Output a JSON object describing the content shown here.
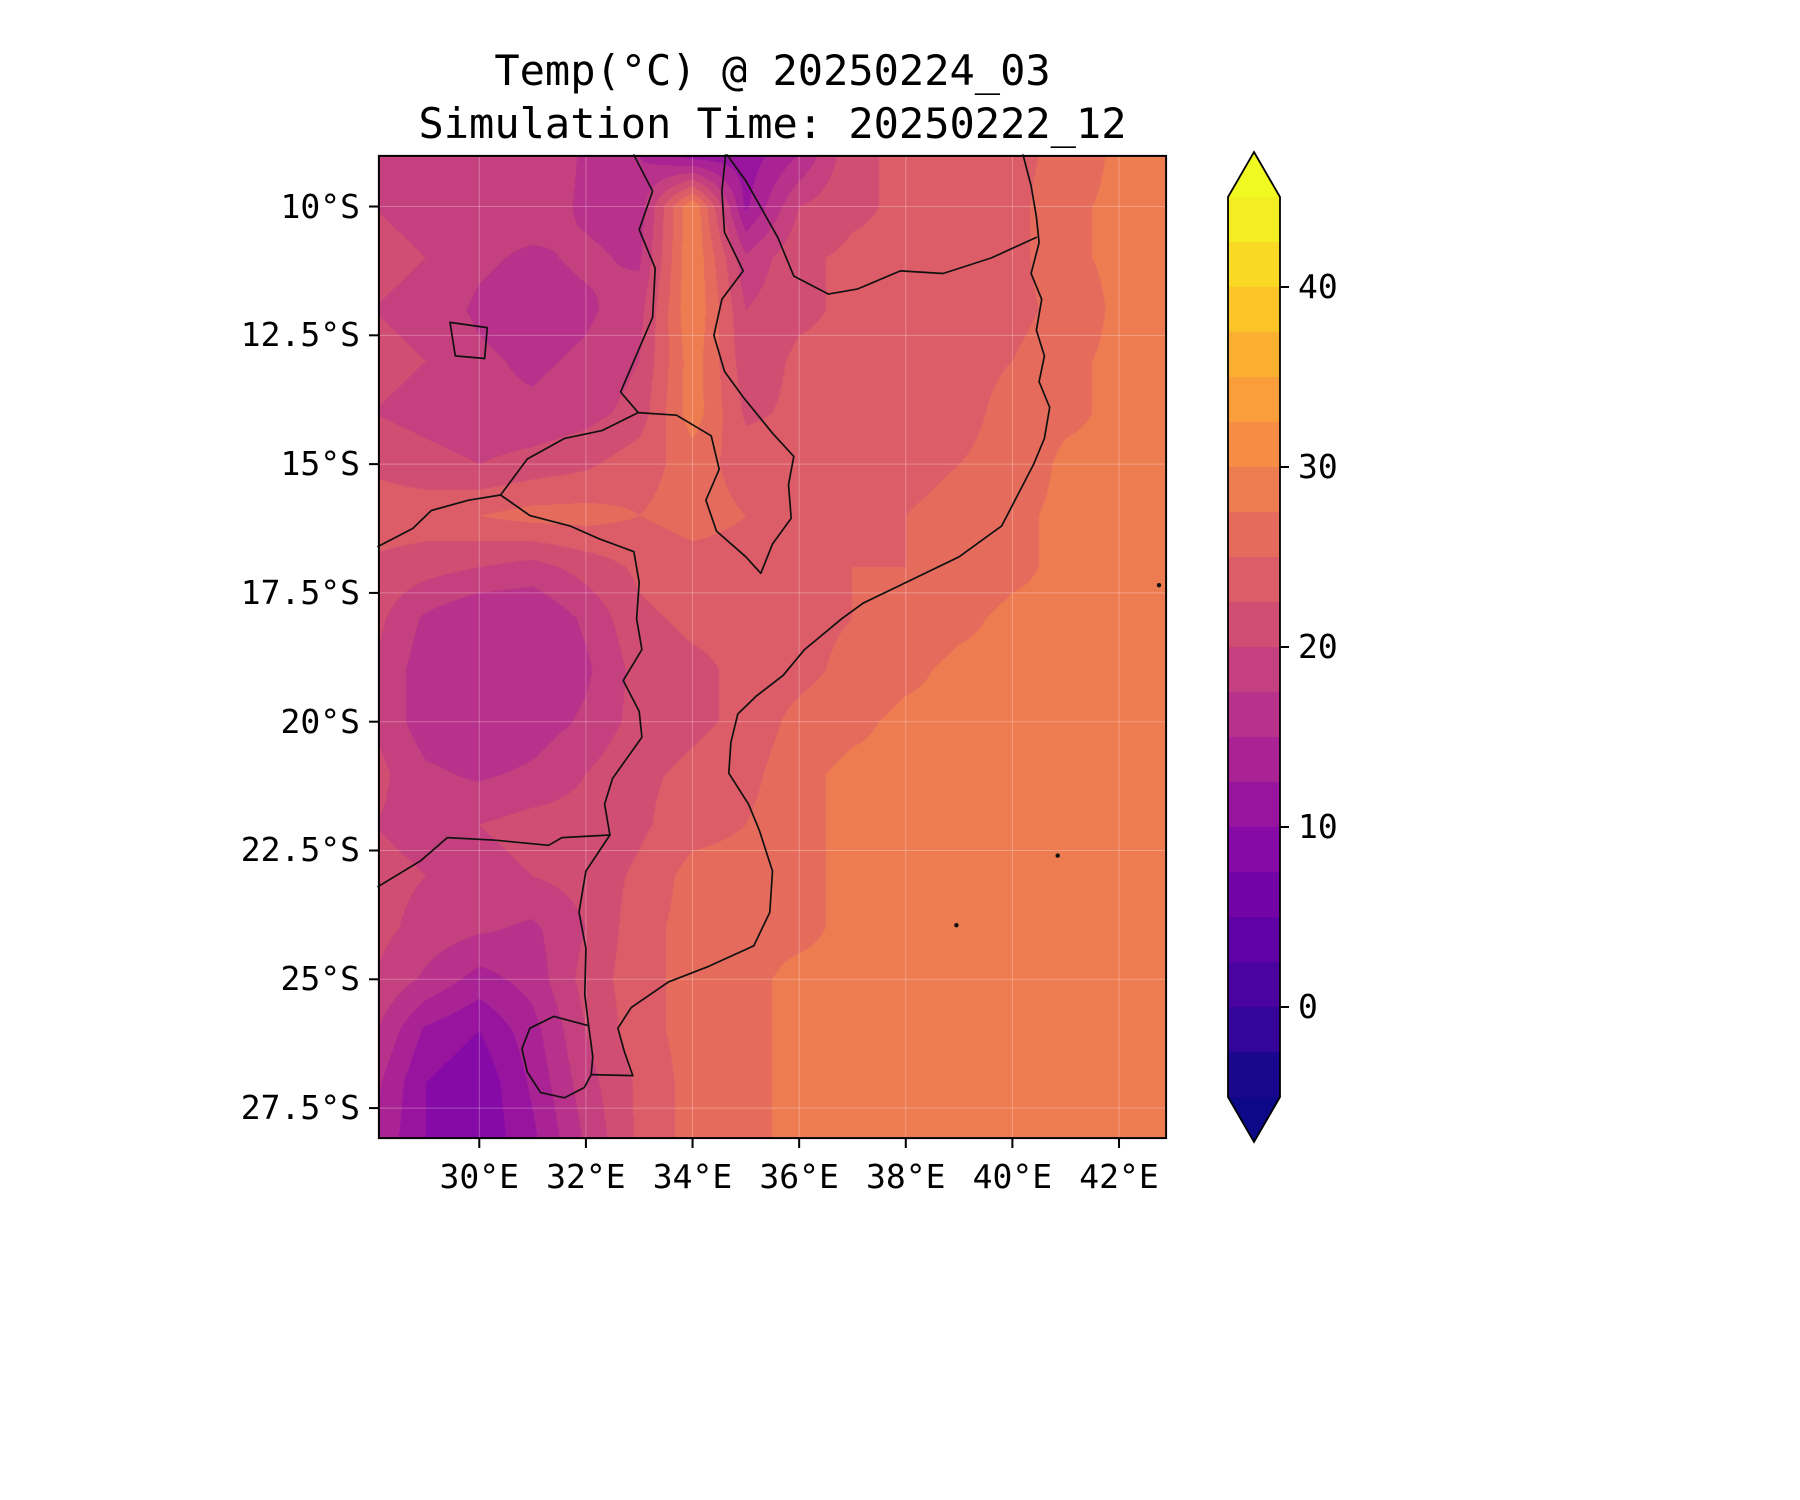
{
  "title": {
    "line1": "Temp(°C) @ 20250224_03",
    "line2": "Simulation Time: 20250222_12"
  },
  "axes": {
    "x_ticks": [
      {
        "value": 30,
        "label": "30°E"
      },
      {
        "value": 32,
        "label": "32°E"
      },
      {
        "value": 34,
        "label": "34°E"
      },
      {
        "value": 36,
        "label": "36°E"
      },
      {
        "value": 38,
        "label": "38°E"
      },
      {
        "value": 40,
        "label": "40°E"
      },
      {
        "value": 42,
        "label": "42°E"
      }
    ],
    "y_ticks": [
      {
        "value": 10,
        "label": "10°S"
      },
      {
        "value": 12.5,
        "label": "12.5°S"
      },
      {
        "value": 15,
        "label": "15°S"
      },
      {
        "value": 17.5,
        "label": "17.5°S"
      },
      {
        "value": 20,
        "label": "20°S"
      },
      {
        "value": 22.5,
        "label": "22.5°S"
      },
      {
        "value": 25,
        "label": "25°S"
      },
      {
        "value": 27.5,
        "label": "27.5°S"
      }
    ]
  },
  "colorbar": {
    "colormap": "plasma",
    "vmin": -5,
    "vmax": 45,
    "band_step": 2.5,
    "over_color": "#f0f921",
    "under_color": "#0d0887",
    "anchors": [
      "#0d0887",
      "#41049d",
      "#6a00a8",
      "#8f0da4",
      "#b12a90",
      "#cc4778",
      "#e16462",
      "#f2844b",
      "#fca636",
      "#fcce25",
      "#f0f921"
    ],
    "ticks": [
      {
        "value": 40,
        "label": "40"
      },
      {
        "value": 30,
        "label": "30"
      },
      {
        "value": 20,
        "label": "20"
      },
      {
        "value": 10,
        "label": "10"
      },
      {
        "value": 0,
        "label": "0"
      }
    ]
  },
  "chart_data": {
    "type": "heatmap",
    "title": "Temp(°C) @ 20250224_03",
    "subtitle": "Simulation Time: 20250222_12",
    "units": "°C",
    "lon_range": [
      28.1,
      42.9
    ],
    "lat_range": [
      9.0,
      28.1
    ],
    "grid_lon": [
      28,
      29,
      30,
      31,
      32,
      33,
      34,
      35,
      36,
      37,
      38,
      39,
      40,
      41,
      42,
      43
    ],
    "grid_lat": [
      9,
      10,
      11,
      12,
      13,
      14,
      15,
      16,
      17,
      18,
      19,
      20,
      21,
      22,
      23,
      24,
      25,
      26,
      27,
      28
    ],
    "temperature_c": [
      [
        20,
        19,
        18,
        20,
        17,
        15,
        11,
        11,
        15,
        22,
        23,
        23,
        24,
        26,
        28,
        28
      ],
      [
        20,
        19,
        18,
        19,
        17,
        16,
        30,
        12,
        20,
        22,
        23,
        23,
        24,
        27,
        28,
        28
      ],
      [
        21,
        20,
        18,
        17,
        18,
        17,
        30,
        18,
        22,
        23,
        23,
        23,
        24,
        27,
        28,
        28
      ],
      [
        20,
        19,
        17,
        16,
        17,
        19,
        30,
        20,
        22,
        23,
        23,
        24,
        24,
        26,
        28,
        28
      ],
      [
        21,
        20,
        18,
        17,
        18,
        20,
        29,
        21,
        23,
        23,
        23,
        24,
        25,
        27,
        28,
        28
      ],
      [
        20,
        19,
        18,
        18,
        19,
        21,
        29,
        22,
        23,
        23,
        24,
        24,
        26,
        27,
        28,
        28
      ],
      [
        22,
        21,
        20,
        21,
        22,
        24,
        26,
        24,
        23,
        24,
        24,
        25,
        26,
        28,
        28,
        28
      ],
      [
        24,
        24,
        25,
        26,
        26,
        25,
        26,
        25,
        24,
        24,
        25,
        26,
        27,
        28,
        28,
        28
      ],
      [
        22,
        21,
        20,
        19,
        21,
        23,
        24,
        24,
        24,
        25,
        25,
        26,
        27,
        28,
        28,
        28
      ],
      [
        21,
        17,
        15,
        15,
        18,
        22,
        23,
        23,
        24,
        25,
        26,
        27,
        28,
        28,
        28,
        28
      ],
      [
        20,
        16,
        15,
        15,
        17,
        21,
        22,
        23,
        24,
        26,
        27,
        28,
        28,
        28,
        28,
        28
      ],
      [
        20,
        16,
        15,
        16,
        18,
        21,
        22,
        23,
        26,
        27,
        28,
        28,
        28,
        28,
        28,
        28
      ],
      [
        21,
        18,
        17,
        18,
        20,
        22,
        23,
        24,
        27,
        28,
        28,
        28,
        28,
        28,
        28,
        28
      ],
      [
        20,
        19,
        20,
        21,
        21,
        22,
        24,
        25,
        27,
        28,
        28,
        28,
        28,
        28,
        28,
        28
      ],
      [
        21,
        20,
        19,
        20,
        21,
        23,
        26,
        26,
        27,
        28,
        28,
        28,
        28,
        28,
        28,
        28
      ],
      [
        21,
        19,
        18,
        17,
        20,
        24,
        26,
        27,
        27,
        28,
        28,
        28,
        28,
        28,
        28,
        28
      ],
      [
        20,
        17,
        14,
        16,
        21,
        24,
        26,
        27,
        28,
        28,
        28,
        28,
        28,
        28,
        28,
        28
      ],
      [
        18,
        12,
        10,
        14,
        20,
        24,
        26,
        27,
        28,
        28,
        28,
        28,
        28,
        28,
        28,
        28
      ],
      [
        16,
        10,
        8,
        13,
        19,
        23,
        26,
        27,
        28,
        28,
        28,
        28,
        28,
        28,
        28,
        28
      ],
      [
        15,
        10,
        8,
        12,
        18,
        23,
        26,
        27,
        28,
        28,
        28,
        28,
        28,
        28,
        28,
        28
      ]
    ],
    "borders": {
      "coastline": [
        [
          40.2,
          9.0
        ],
        [
          40.35,
          9.6
        ],
        [
          40.45,
          10.2
        ],
        [
          40.5,
          10.7
        ],
        [
          40.35,
          11.3
        ],
        [
          40.55,
          11.8
        ],
        [
          40.45,
          12.4
        ],
        [
          40.6,
          12.9
        ],
        [
          40.5,
          13.4
        ],
        [
          40.7,
          13.9
        ],
        [
          40.6,
          14.5
        ],
        [
          40.4,
          15.0
        ],
        [
          40.1,
          15.6
        ],
        [
          39.8,
          16.2
        ],
        [
          39.0,
          16.8
        ],
        [
          38.1,
          17.25
        ],
        [
          37.2,
          17.7
        ],
        [
          36.8,
          18.0
        ],
        [
          36.1,
          18.6
        ],
        [
          35.7,
          19.1
        ],
        [
          35.2,
          19.5
        ],
        [
          34.85,
          19.85
        ],
        [
          34.72,
          20.4
        ],
        [
          34.68,
          21.0
        ],
        [
          35.05,
          21.6
        ],
        [
          35.25,
          22.1
        ],
        [
          35.5,
          22.9
        ],
        [
          35.45,
          23.7
        ],
        [
          35.15,
          24.35
        ],
        [
          34.3,
          24.75
        ],
        [
          33.55,
          25.05
        ],
        [
          32.85,
          25.55
        ],
        [
          32.6,
          25.95
        ],
        [
          32.72,
          26.4
        ],
        [
          32.88,
          26.87
        ]
      ],
      "tanzania_mozambique": [
        [
          40.45,
          10.6
        ],
        [
          39.6,
          11.0
        ],
        [
          38.7,
          11.3
        ],
        [
          37.9,
          11.25
        ],
        [
          37.1,
          11.6
        ],
        [
          36.55,
          11.7
        ]
      ],
      "tanzania_malawi": [
        [
          36.55,
          11.7
        ],
        [
          35.9,
          11.35
        ],
        [
          35.6,
          10.6
        ],
        [
          35.0,
          9.5
        ],
        [
          34.65,
          9.0
        ]
      ],
      "malawi_west": [
        [
          32.9,
          9.0
        ],
        [
          33.25,
          9.7
        ],
        [
          33.0,
          10.45
        ],
        [
          33.3,
          11.2
        ],
        [
          33.25,
          12.15
        ],
        [
          32.98,
          12.8
        ],
        [
          32.65,
          13.6
        ],
        [
          32.98,
          14.0
        ]
      ],
      "malawi_south_east": [
        [
          32.98,
          14.0
        ],
        [
          33.7,
          14.05
        ],
        [
          34.35,
          14.45
        ],
        [
          34.5,
          15.1
        ],
        [
          34.25,
          15.7
        ],
        [
          34.45,
          16.3
        ],
        [
          35.0,
          16.8
        ],
        [
          35.28,
          17.12
        ],
        [
          35.5,
          16.55
        ],
        [
          35.85,
          16.05
        ],
        [
          35.8,
          15.4
        ],
        [
          35.9,
          14.85
        ],
        [
          35.5,
          14.4
        ],
        [
          34.95,
          13.7
        ],
        [
          34.6,
          13.2
        ],
        [
          34.4,
          12.5
        ],
        [
          34.55,
          11.8
        ],
        [
          34.95,
          11.25
        ],
        [
          34.6,
          10.5
        ],
        [
          34.55,
          9.7
        ],
        [
          34.62,
          9.0
        ]
      ],
      "zambia_mozambique": [
        [
          32.98,
          14.0
        ],
        [
          32.3,
          14.35
        ],
        [
          31.6,
          14.5
        ],
        [
          30.9,
          14.9
        ],
        [
          30.4,
          15.6
        ]
      ],
      "zambia_zimbabwe": [
        [
          30.4,
          15.6
        ],
        [
          29.8,
          15.7
        ],
        [
          29.1,
          15.9
        ],
        [
          28.75,
          16.25
        ],
        [
          28.1,
          16.6
        ]
      ],
      "zimbabwe_mozambique": [
        [
          30.4,
          15.6
        ],
        [
          30.95,
          16.0
        ],
        [
          31.7,
          16.2
        ],
        [
          32.25,
          16.45
        ],
        [
          32.9,
          16.7
        ],
        [
          33.0,
          17.3
        ],
        [
          32.95,
          18.0
        ],
        [
          33.05,
          18.6
        ],
        [
          32.7,
          19.2
        ],
        [
          33.0,
          19.8
        ],
        [
          33.05,
          20.3
        ],
        [
          32.5,
          21.1
        ],
        [
          32.35,
          21.6
        ],
        [
          32.45,
          22.2
        ]
      ],
      "limpopo": [
        [
          28.1,
          23.2
        ],
        [
          28.9,
          22.7
        ],
        [
          29.4,
          22.25
        ],
        [
          30.3,
          22.3
        ],
        [
          31.3,
          22.4
        ],
        [
          31.55,
          22.25
        ],
        [
          32.45,
          22.2
        ]
      ],
      "mozambique_south_africa": [
        [
          32.45,
          22.2
        ],
        [
          32.0,
          22.9
        ],
        [
          31.87,
          23.7
        ],
        [
          32.0,
          24.4
        ],
        [
          31.98,
          25.3
        ],
        [
          32.05,
          25.9
        ]
      ],
      "eswatini": [
        [
          32.05,
          25.9
        ],
        [
          31.4,
          25.72
        ],
        [
          30.95,
          25.95
        ],
        [
          30.8,
          26.35
        ],
        [
          30.9,
          26.8
        ],
        [
          31.15,
          27.2
        ],
        [
          31.6,
          27.3
        ],
        [
          31.97,
          27.1
        ],
        [
          32.1,
          26.85
        ],
        [
          32.13,
          26.5
        ],
        [
          32.05,
          25.9
        ]
      ],
      "mozambique_sa_south": [
        [
          32.1,
          26.85
        ],
        [
          32.88,
          26.87
        ]
      ],
      "lake_northwest": [
        [
          29.45,
          12.25
        ],
        [
          30.15,
          12.35
        ],
        [
          30.1,
          12.95
        ],
        [
          29.55,
          12.9
        ],
        [
          29.45,
          12.25
        ]
      ]
    },
    "islands": [
      [
        40.85,
        22.6
      ],
      [
        42.75,
        17.35
      ],
      [
        38.95,
        23.95
      ]
    ]
  }
}
